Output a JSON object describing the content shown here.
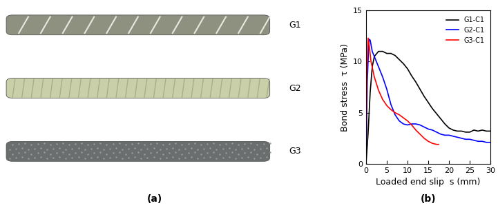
{
  "panel_labels": [
    "(a)",
    "(b)"
  ],
  "photo": {
    "specimens": [
      "G1",
      "G2",
      "G3"
    ]
  },
  "chart_data": {
    "type": "line",
    "x_label": "Loaded end slip  s (mm)",
    "y_label": "Bond stress  τ (MPa)",
    "xlim": [
      0,
      30
    ],
    "xticks": [
      0,
      5,
      10,
      15,
      20,
      25,
      30
    ],
    "ylim": [
      0,
      15
    ],
    "yticks": [
      0,
      5,
      10,
      15
    ],
    "legend": "upper right",
    "series": [
      {
        "name": "G1-C1",
        "color": "#000000",
        "x": [
          0,
          0.5,
          1,
          1.5,
          2,
          3,
          4,
          5,
          6,
          7,
          8,
          9,
          10,
          11,
          12,
          13,
          14,
          15,
          16,
          17,
          18,
          19,
          20,
          21,
          22,
          23,
          24,
          25,
          26,
          27,
          28,
          29,
          30
        ],
        "values": [
          0,
          3,
          7,
          9.5,
          10.5,
          11,
          11,
          10.8,
          10.8,
          10.6,
          10.2,
          9.8,
          9.3,
          8.6,
          8,
          7.3,
          6.6,
          6,
          5.4,
          4.9,
          4.4,
          3.9,
          3.5,
          3.3,
          3.2,
          3.2,
          3.1,
          3.1,
          3.3,
          3.2,
          3.3,
          3.2,
          3.2
        ]
      },
      {
        "name": "G2-C1",
        "color": "#0000ff",
        "x": [
          0,
          0.3,
          0.7,
          1,
          1.5,
          2,
          3,
          4,
          5,
          6,
          7,
          8,
          9,
          10,
          11,
          12,
          13,
          14,
          15,
          16,
          17,
          18,
          19,
          20,
          21,
          22,
          23,
          24,
          25,
          26,
          27,
          28,
          29,
          30
        ],
        "values": [
          0,
          8,
          12.2,
          12.1,
          11,
          10.5,
          9.5,
          8.5,
          7.3,
          5.8,
          4.8,
          4.2,
          3.9,
          3.8,
          3.9,
          3.9,
          3.8,
          3.6,
          3.4,
          3.3,
          3.1,
          2.9,
          2.8,
          2.8,
          2.7,
          2.6,
          2.5,
          2.4,
          2.4,
          2.3,
          2.2,
          2.2,
          2.1,
          2.1
        ]
      },
      {
        "name": "G3-C1",
        "color": "#ff0000",
        "x": [
          0,
          0.2,
          0.5,
          0.8,
          1.2,
          2,
          3,
          4,
          5,
          6,
          7,
          8,
          9,
          10,
          11,
          12,
          13,
          14,
          15,
          16,
          17,
          17.5
        ],
        "values": [
          0,
          9,
          12.3,
          11.5,
          10,
          8.5,
          7.2,
          6.3,
          5.7,
          5.3,
          5,
          4.8,
          4.5,
          4.2,
          3.8,
          3.3,
          2.9,
          2.5,
          2.2,
          2.0,
          1.9,
          1.9
        ]
      }
    ]
  }
}
